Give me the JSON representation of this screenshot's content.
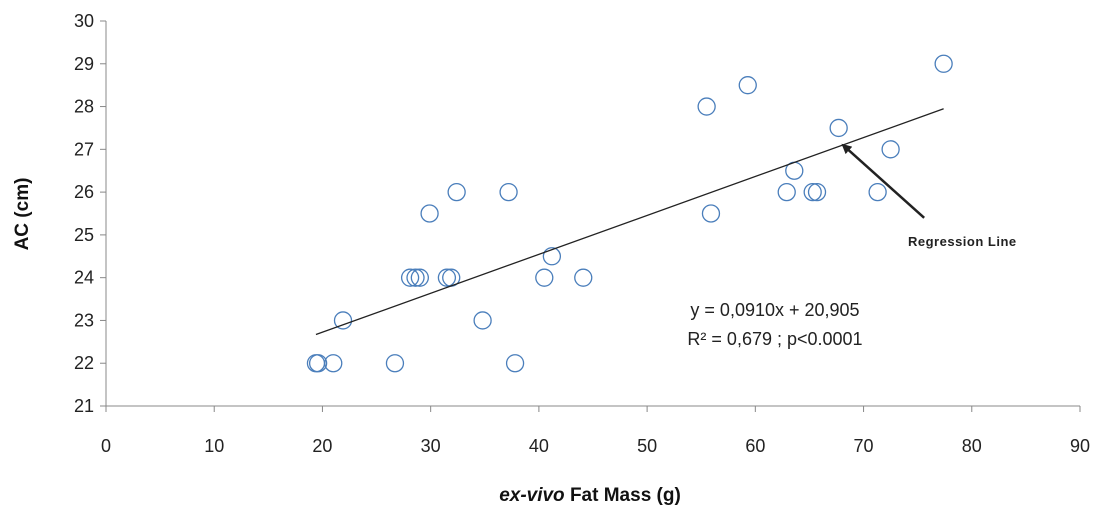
{
  "chart_data": {
    "type": "scatter",
    "xlabel_prefix": "ex-vivo",
    "xlabel_suffix": " Fat Mass (g)",
    "ylabel": "AC (cm)",
    "xlim": [
      0,
      90
    ],
    "ylim": [
      21,
      30
    ],
    "x_ticks": [
      "0",
      "10",
      "20",
      "30",
      "40",
      "50",
      "60",
      "70",
      "80",
      "90"
    ],
    "y_ticks": [
      "21",
      "22",
      "23",
      "24",
      "25",
      "26",
      "27",
      "28",
      "29",
      "30"
    ],
    "grid": false,
    "marker_color": "#4a7ebb",
    "points": [
      {
        "x": 19.4,
        "y": 22
      },
      {
        "x": 19.6,
        "y": 22
      },
      {
        "x": 21.0,
        "y": 22
      },
      {
        "x": 21.9,
        "y": 23
      },
      {
        "x": 26.7,
        "y": 22
      },
      {
        "x": 28.1,
        "y": 24
      },
      {
        "x": 28.6,
        "y": 24
      },
      {
        "x": 29.0,
        "y": 24
      },
      {
        "x": 29.9,
        "y": 25.5
      },
      {
        "x": 31.5,
        "y": 24
      },
      {
        "x": 31.9,
        "y": 24
      },
      {
        "x": 32.4,
        "y": 26
      },
      {
        "x": 34.8,
        "y": 23
      },
      {
        "x": 37.2,
        "y": 26
      },
      {
        "x": 37.8,
        "y": 22
      },
      {
        "x": 40.5,
        "y": 24
      },
      {
        "x": 41.2,
        "y": 24.5
      },
      {
        "x": 44.1,
        "y": 24
      },
      {
        "x": 55.5,
        "y": 28
      },
      {
        "x": 55.9,
        "y": 25.5
      },
      {
        "x": 59.3,
        "y": 28.5
      },
      {
        "x": 62.9,
        "y": 26
      },
      {
        "x": 63.6,
        "y": 26.5
      },
      {
        "x": 65.3,
        "y": 26
      },
      {
        "x": 65.7,
        "y": 26
      },
      {
        "x": 67.7,
        "y": 27.5
      },
      {
        "x": 71.3,
        "y": 26
      },
      {
        "x": 72.5,
        "y": 27
      },
      {
        "x": 77.4,
        "y": 29
      }
    ],
    "regression": {
      "slope": 0.091,
      "intercept": 20.905,
      "x_start": 19.4,
      "x_end": 77.4,
      "equation": "y = 0,0910x + 20,905",
      "stats": "R² = 0,679 ; p<0.0001"
    },
    "annotation": {
      "text": "Regression Line",
      "arrow_tip": {
        "x": 68.1,
        "y": 27.1
      },
      "arrow_tail": {
        "x": 75.6,
        "y": 25.4
      }
    }
  }
}
